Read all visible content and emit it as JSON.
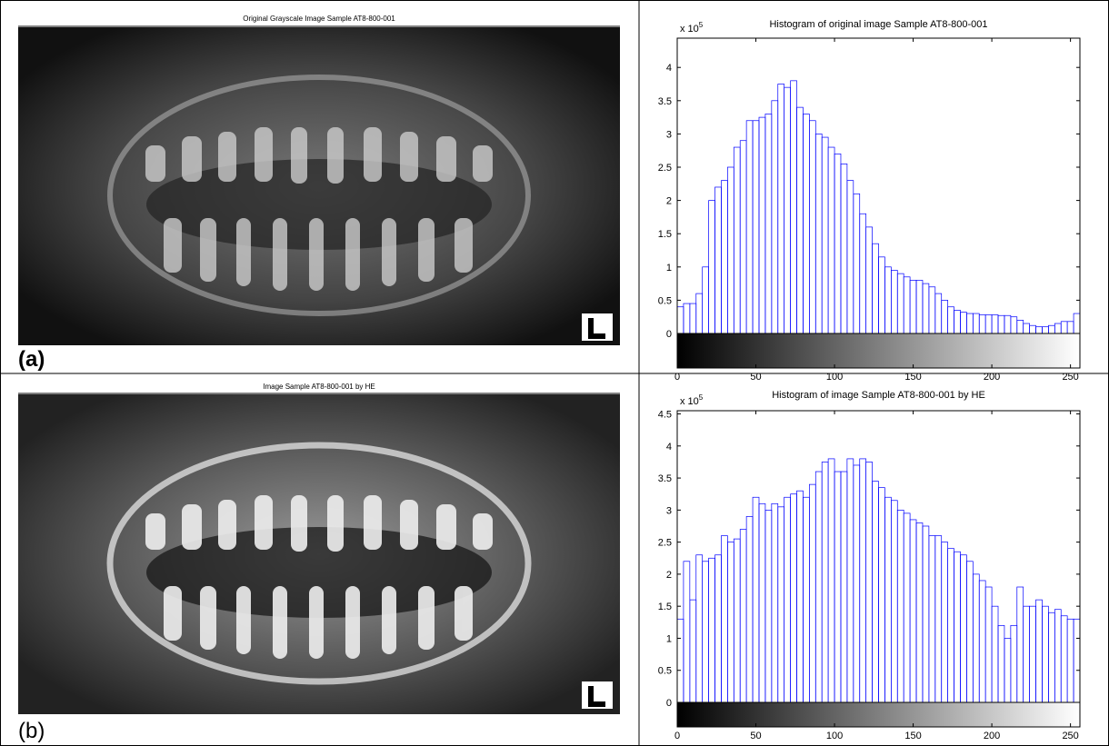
{
  "images": [
    {
      "title": "Original Grayscale Image Sample AT8-800-001",
      "label": "(a)"
    },
    {
      "title": "Image Sample AT8-800-001 by HE",
      "label": "(b)"
    }
  ],
  "chart_data": [
    {
      "type": "histogram",
      "title": "Histogram of original image Sample AT8-800-001",
      "y_multiplier": {
        "base": "x 10",
        "exponent": "5"
      },
      "bins": [
        0,
        4,
        8,
        12,
        16,
        20,
        24,
        28,
        32,
        36,
        40,
        44,
        48,
        52,
        56,
        60,
        64,
        68,
        72,
        76,
        80,
        84,
        88,
        92,
        96,
        100,
        104,
        108,
        112,
        116,
        120,
        124,
        128,
        132,
        136,
        140,
        144,
        148,
        152,
        156,
        160,
        164,
        168,
        172,
        176,
        180,
        184,
        188,
        192,
        196,
        200,
        204,
        208,
        212,
        216,
        220,
        224,
        228,
        232,
        236,
        240,
        244,
        248,
        252,
        256
      ],
      "values": [
        0.4,
        0.45,
        0.45,
        0.6,
        1.0,
        2.0,
        2.2,
        2.3,
        2.5,
        2.8,
        2.9,
        3.2,
        3.2,
        3.25,
        3.3,
        3.5,
        3.75,
        3.7,
        3.8,
        3.4,
        3.3,
        3.2,
        3.0,
        2.95,
        2.8,
        2.7,
        2.55,
        2.3,
        2.1,
        1.8,
        1.6,
        1.35,
        1.15,
        1.0,
        0.95,
        0.9,
        0.85,
        0.8,
        0.8,
        0.75,
        0.7,
        0.6,
        0.5,
        0.4,
        0.35,
        0.32,
        0.3,
        0.3,
        0.28,
        0.28,
        0.28,
        0.27,
        0.27,
        0.25,
        0.2,
        0.15,
        0.12,
        0.1,
        0.1,
        0.12,
        0.15,
        0.18,
        0.18,
        0.3
      ],
      "color": "#0000ff",
      "xlim": [
        0,
        256
      ],
      "xticks": [
        0,
        50,
        100,
        150,
        200,
        250
      ],
      "ylim": [
        0,
        4.44
      ],
      "yticks": [
        0,
        0.5,
        1,
        1.5,
        2,
        2.5,
        3,
        3.5,
        4
      ]
    },
    {
      "type": "histogram",
      "title": "Histogram of image Sample AT8-800-001 by HE",
      "y_multiplier": {
        "base": "x 10",
        "exponent": "5"
      },
      "bins": [
        0,
        4,
        8,
        12,
        16,
        20,
        24,
        28,
        32,
        36,
        40,
        44,
        48,
        52,
        56,
        60,
        64,
        68,
        72,
        76,
        80,
        84,
        88,
        92,
        96,
        100,
        104,
        108,
        112,
        116,
        120,
        124,
        128,
        132,
        136,
        140,
        144,
        148,
        152,
        156,
        160,
        164,
        168,
        172,
        176,
        180,
        184,
        188,
        192,
        196,
        200,
        204,
        208,
        212,
        216,
        220,
        224,
        228,
        232,
        236,
        240,
        244,
        248,
        252,
        256
      ],
      "values": [
        1.3,
        2.2,
        1.6,
        2.3,
        2.2,
        2.25,
        2.3,
        2.6,
        2.5,
        2.55,
        2.7,
        2.9,
        3.2,
        3.1,
        3.0,
        3.1,
        3.05,
        3.2,
        3.25,
        3.3,
        3.2,
        3.4,
        3.6,
        3.75,
        3.8,
        3.6,
        3.6,
        3.8,
        3.7,
        3.8,
        3.75,
        3.45,
        3.35,
        3.2,
        3.15,
        3.0,
        2.95,
        2.85,
        2.8,
        2.75,
        2.6,
        2.6,
        2.5,
        2.4,
        2.35,
        2.3,
        2.2,
        2.0,
        1.9,
        1.8,
        1.5,
        1.2,
        1.0,
        1.2,
        1.8,
        1.5,
        1.5,
        1.6,
        1.5,
        1.4,
        1.45,
        1.35,
        1.3,
        1.3
      ],
      "color": "#0000ff",
      "xlim": [
        0,
        256
      ],
      "xticks": [
        0,
        50,
        100,
        150,
        200,
        250
      ],
      "ylim": [
        0,
        4.55
      ],
      "yticks": [
        0,
        0.5,
        1,
        1.5,
        2,
        2.5,
        3,
        3.5,
        4,
        4.5
      ]
    }
  ]
}
